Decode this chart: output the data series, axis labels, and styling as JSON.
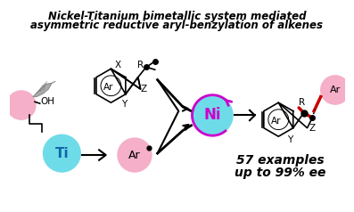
{
  "title_line1": "Nickel-Titanium bimetallic system mediated",
  "title_line2": "asymmetric reductive aryl-benzylation of alkenes",
  "title_fontsize": 8.5,
  "bg_color": "#ffffff",
  "pink_color": "#f5afc8",
  "cyan_color": "#6edce8",
  "magenta_color": "#cc00cc",
  "line_color": "#000000",
  "red_color": "#cc0000",
  "examples_text": "57 examples",
  "ee_text": "up to 99% ee",
  "examples_fontsize": 10
}
